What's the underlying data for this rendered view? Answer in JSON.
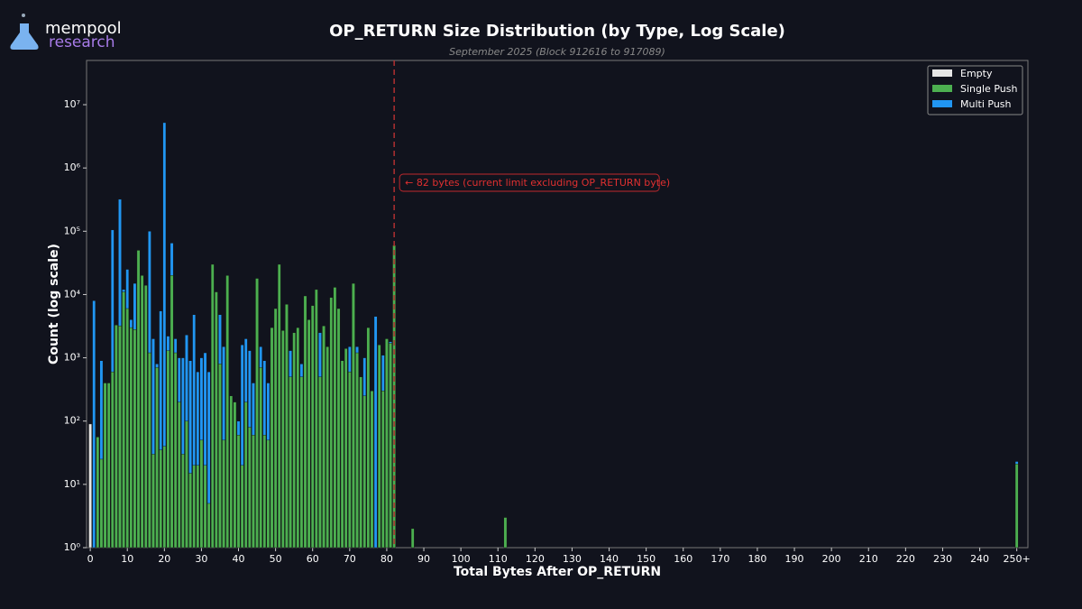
{
  "logo": {
    "line1": "mempool",
    "line2": "research"
  },
  "chart_data": {
    "type": "bar",
    "title": "OP_RETURN Size Distribution (by Type, Log Scale)",
    "subtitle": "September 2025 (Block 912616 to 917089)",
    "xlabel": "Total Bytes After OP_RETURN",
    "ylabel": "Count (log scale)",
    "log_scale": true,
    "legend": "upper right",
    "xlim": [
      -1,
      253
    ],
    "ylim": [
      1,
      50000000
    ],
    "xticks": [
      0,
      10,
      20,
      30,
      40,
      50,
      60,
      70,
      80,
      90,
      100,
      110,
      120,
      130,
      140,
      150,
      160,
      170,
      180,
      190,
      200,
      210,
      220,
      230,
      240,
      {
        "value": 250,
        "label": "250+"
      }
    ],
    "yticks": [
      {
        "value": 1,
        "label": "10⁰"
      },
      {
        "value": 10,
        "label": "10¹"
      },
      {
        "value": 100,
        "label": "10²"
      },
      {
        "value": 1000,
        "label": "10³"
      },
      {
        "value": 10000,
        "label": "10⁴"
      },
      {
        "value": 100000,
        "label": "10⁵"
      },
      {
        "value": 1000000,
        "label": "10⁶"
      },
      {
        "value": 10000000,
        "label": "10⁷"
      }
    ],
    "x": [
      0,
      1,
      2,
      3,
      4,
      5,
      6,
      7,
      8,
      9,
      10,
      11,
      12,
      13,
      14,
      15,
      16,
      17,
      18,
      19,
      20,
      21,
      22,
      23,
      24,
      25,
      26,
      27,
      28,
      29,
      30,
      31,
      32,
      33,
      34,
      35,
      36,
      37,
      38,
      39,
      40,
      41,
      42,
      43,
      44,
      45,
      46,
      47,
      48,
      49,
      50,
      51,
      52,
      53,
      54,
      55,
      56,
      57,
      58,
      59,
      60,
      61,
      62,
      63,
      64,
      65,
      66,
      67,
      68,
      69,
      70,
      71,
      72,
      73,
      74,
      75,
      76,
      77,
      78,
      79,
      80,
      81,
      82,
      87,
      112,
      250
    ],
    "series": [
      {
        "name": "Empty",
        "color": "#e6e6e6",
        "x": [
          0
        ],
        "values": [
          90
        ]
      },
      {
        "name": "Single Push",
        "color": "#4caf50",
        "values": [
          null,
          null,
          56,
          25,
          400,
          400,
          600,
          3300,
          3200,
          11000,
          6000,
          3000,
          2800,
          50000,
          20000,
          14000,
          1200,
          30,
          700,
          35,
          40,
          1300,
          20000,
          1200,
          200,
          30,
          100,
          15,
          20,
          20,
          50,
          20,
          5,
          30000,
          11000,
          800,
          50,
          20000,
          250,
          200,
          60,
          20,
          200,
          80,
          60,
          18000,
          700,
          60,
          50,
          3000,
          6000,
          30000,
          2700,
          7000,
          500,
          2500,
          3000,
          500,
          9500,
          4000,
          6700,
          12000,
          500,
          3200,
          1500,
          9000,
          13000,
          6000,
          900,
          1400,
          600,
          15000,
          1200,
          500,
          250,
          3000,
          300,
          null,
          1600,
          300,
          2000,
          1700,
          60000,
          2,
          3,
          21
        ]
      },
      {
        "name": "Multi Push",
        "color": "#2196f3",
        "values": [
          null,
          8000,
          null,
          900,
          260,
          null,
          105000,
          3000,
          320000,
          12000,
          25000,
          4000,
          15000,
          2000,
          6000,
          null,
          100000,
          2000,
          800,
          5500,
          5200000,
          2200,
          65000,
          2000,
          1000,
          1000,
          2300,
          900,
          4800,
          600,
          1000,
          1200,
          600,
          null,
          2000,
          4800,
          1500,
          null,
          null,
          null,
          100,
          1600,
          2000,
          1300,
          400,
          700,
          1500,
          900,
          400,
          500,
          700,
          200,
          2300,
          300,
          1300,
          1800,
          400,
          800,
          1500,
          400,
          3000,
          600,
          2500,
          900,
          400,
          2000,
          300,
          900,
          400,
          900,
          1500,
          300,
          1500,
          null,
          1000,
          300,
          null,
          4500,
          200,
          1100,
          2000,
          1800,
          null,
          null,
          null,
          23
        ]
      }
    ],
    "annotation": {
      "x": 82,
      "text": "← 82 bytes (current limit excluding OP_RETURN byte)"
    }
  }
}
